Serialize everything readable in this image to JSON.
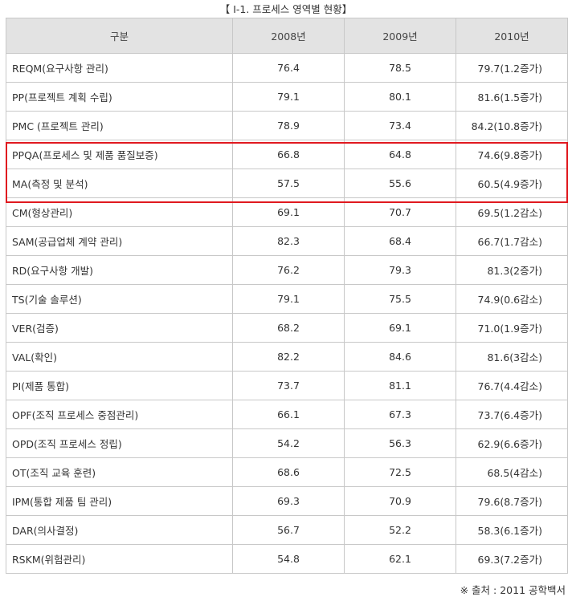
{
  "caption": "【 I-1. 프로세스 영역별 현황】",
  "headers": {
    "category": "구분",
    "y2008": "2008년",
    "y2009": "2009년",
    "y2010": "2010년"
  },
  "rows": [
    {
      "label": "REQM(요구사항 관리)",
      "y2008": "76.4",
      "y2009": "78.5",
      "y2010": "79.7(1.2증가)"
    },
    {
      "label": "PP(프로젝트 계획 수립)",
      "y2008": "79.1",
      "y2009": "80.1",
      "y2010": "81.6(1.5증가)"
    },
    {
      "label": "PMC (프로젝트 관리)",
      "y2008": "78.9",
      "y2009": "73.4",
      "y2010": "84.2(10.8증가)"
    },
    {
      "label": "PPQA(프로세스 및 제품 품질보증)",
      "y2008": "66.8",
      "y2009": "64.8",
      "y2010": "74.6(9.8증가)"
    },
    {
      "label": "MA(측정 및 분석)",
      "y2008": "57.5",
      "y2009": "55.6",
      "y2010": "60.5(4.9증가)"
    },
    {
      "label": "CM(형상관리)",
      "y2008": "69.1",
      "y2009": "70.7",
      "y2010": "69.5(1.2감소)"
    },
    {
      "label": "SAM(공급업체 계약 관리)",
      "y2008": "82.3",
      "y2009": "68.4",
      "y2010": "66.7(1.7감소)"
    },
    {
      "label": "RD(요구사항 개발)",
      "y2008": "76.2",
      "y2009": "79.3",
      "y2010": "81.3(2증가)"
    },
    {
      "label": "TS(기술 솔루션)",
      "y2008": "79.1",
      "y2009": "75.5",
      "y2010": "74.9(0.6감소)"
    },
    {
      "label": "VER(검증)",
      "y2008": "68.2",
      "y2009": "69.1",
      "y2010": "71.0(1.9증가)"
    },
    {
      "label": "VAL(확인)",
      "y2008": "82.2",
      "y2009": "84.6",
      "y2010": "81.6(3감소)"
    },
    {
      "label": "PI(제품 통합)",
      "y2008": "73.7",
      "y2009": "81.1",
      "y2010": "76.7(4.4감소)"
    },
    {
      "label": "OPF(조직 프로세스 중점관리)",
      "y2008": "66.1",
      "y2009": "67.3",
      "y2010": "73.7(6.4증가)"
    },
    {
      "label": "OPD(조직 프로세스 정립)",
      "y2008": "54.2",
      "y2009": "56.3",
      "y2010": "62.9(6.6증가)"
    },
    {
      "label": "OT(조직 교육 훈련)",
      "y2008": "68.6",
      "y2009": "72.5",
      "y2010": "68.5(4감소)"
    },
    {
      "label": "IPM(통합 제품 팀 관리)",
      "y2008": "69.3",
      "y2009": "70.9",
      "y2010": "79.6(8.7증가)"
    },
    {
      "label": "DAR(의사결정)",
      "y2008": "56.7",
      "y2009": "52.2",
      "y2010": "58.3(6.1증가)"
    },
    {
      "label": "RSKM(위험관리)",
      "y2008": "54.8",
      "y2009": "62.1",
      "y2010": "69.3(7.2증가)"
    }
  ],
  "source": "※ 출처 : 2011 공학백서",
  "colors": {
    "header_bg": "#e3e3e3",
    "border": "#c8c8c8",
    "highlight": "#e0191f"
  }
}
